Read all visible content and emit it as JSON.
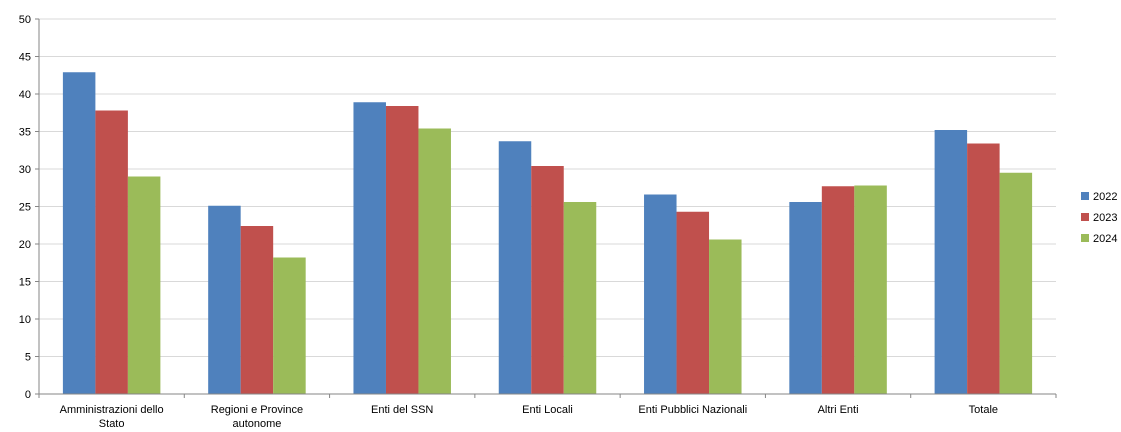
{
  "chart_data": {
    "type": "bar",
    "title": "",
    "xlabel": "",
    "ylabel": "",
    "ylim": [
      0,
      50
    ],
    "yticks": [
      0,
      5,
      10,
      15,
      20,
      25,
      30,
      35,
      40,
      45,
      50
    ],
    "grid": true,
    "legend_position": "right",
    "categories": [
      [
        "Amministrazioni dello",
        "Stato"
      ],
      [
        "Regioni e Province",
        "autonome"
      ],
      [
        "Enti del SSN"
      ],
      [
        "Enti Locali"
      ],
      [
        "Enti Pubblici Nazionali"
      ],
      [
        "Altri Enti"
      ],
      [
        "Totale"
      ]
    ],
    "series": [
      {
        "name": "2022",
        "color": "#4F81BD",
        "values": [
          42.9,
          25.1,
          38.9,
          33.7,
          26.6,
          25.6,
          35.2
        ]
      },
      {
        "name": "2023",
        "color": "#C0504D",
        "values": [
          37.8,
          22.4,
          38.4,
          30.4,
          24.3,
          27.7,
          33.4
        ]
      },
      {
        "name": "2024",
        "color": "#9BBB59",
        "values": [
          29.0,
          18.2,
          35.4,
          25.6,
          20.6,
          27.8,
          29.5
        ]
      }
    ]
  }
}
